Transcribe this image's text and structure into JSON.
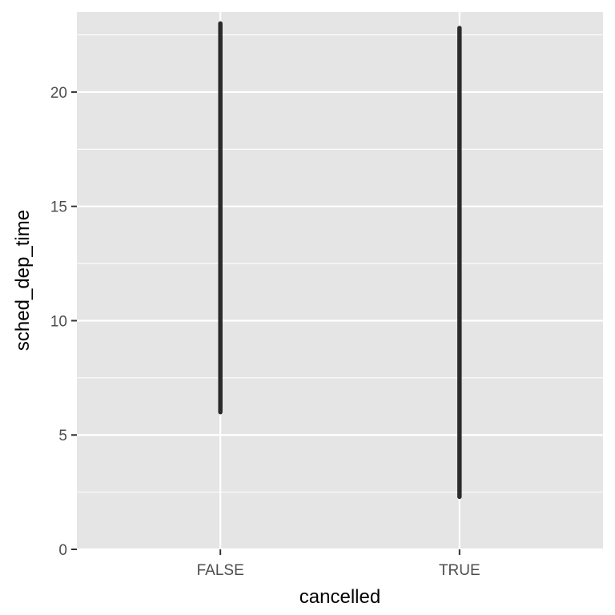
{
  "chart_data": {
    "type": "range",
    "xlabel": "cancelled",
    "ylabel": "sched_dep_time",
    "categories": [
      "FALSE",
      "TRUE"
    ],
    "series": [
      {
        "category": "FALSE",
        "y_min": 6.0,
        "y_max": 23.0
      },
      {
        "category": "TRUE",
        "y_min": 2.3,
        "y_max": 22.8
      }
    ],
    "y_ticks": [
      0,
      5,
      10,
      15,
      20
    ],
    "y_tick_labels": [
      "0",
      "5",
      "10",
      "15",
      "20"
    ],
    "ylim": [
      0,
      23.5
    ],
    "grid": true,
    "legend": "none",
    "colors": {
      "panel": "#e5e5e5",
      "grid": "#ffffff",
      "line": "#2b2b2b",
      "tick_label": "#4d4d4d",
      "axis_title": "#000000"
    }
  }
}
